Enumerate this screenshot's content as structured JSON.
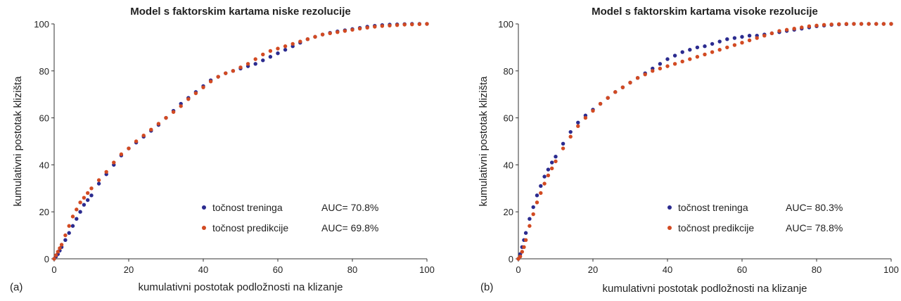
{
  "figure": {
    "panel_labels": [
      "(a)",
      "(b)"
    ]
  },
  "colors": {
    "training": "#2b2b8f",
    "prediction": "#d24a22",
    "axis": "#333333",
    "text": "#222222"
  },
  "chart_data": [
    {
      "type": "scatter",
      "title": "Model s faktorskim kartama niske rezolucije",
      "xlabel": "kumulativni postotak podložnosti na klizanje",
      "ylabel": "kumulativni postotak klizišta",
      "xlim": [
        0,
        100
      ],
      "ylim": [
        0,
        100
      ],
      "xticks": [
        0,
        20,
        40,
        60,
        80,
        100
      ],
      "yticks": [
        0,
        20,
        40,
        60,
        80,
        100
      ],
      "grid": false,
      "legend_position": "bottom-right",
      "series": [
        {
          "name": "točnost treninga",
          "auc_label": "AUC= 70.8%",
          "color": "#2b2b8f",
          "x": [
            0,
            0.5,
            1,
            1.5,
            2,
            3,
            4,
            5,
            6,
            7,
            8,
            9,
            10,
            12,
            14,
            16,
            18,
            20,
            22,
            24,
            26,
            28,
            30,
            32,
            34,
            36,
            38,
            40,
            42,
            44,
            46,
            48,
            50,
            52,
            54,
            56,
            58,
            60,
            62,
            64,
            66,
            68,
            70,
            72,
            74,
            76,
            78,
            80,
            82,
            84,
            86,
            88,
            90,
            92,
            94,
            96,
            98,
            100
          ],
          "y": [
            0,
            1,
            2,
            3.5,
            5,
            8,
            11,
            14,
            17,
            20,
            23,
            25,
            27,
            32,
            36,
            40,
            44,
            47,
            49.5,
            52,
            54.5,
            57,
            60,
            63,
            66,
            68.5,
            71,
            73.5,
            76,
            77.5,
            79,
            80,
            81,
            82,
            83,
            84.5,
            86,
            87.5,
            89,
            90.5,
            92,
            93.5,
            94.5,
            95.5,
            96.2,
            96.8,
            97.3,
            97.8,
            98.3,
            98.8,
            99.2,
            99.5,
            99.7,
            99.8,
            99.9,
            100,
            100,
            100
          ]
        },
        {
          "name": "točnost predikcije",
          "auc_label": "AUC= 69.8%",
          "color": "#d24a22",
          "x": [
            0,
            0.5,
            1,
            1.5,
            2,
            3,
            4,
            5,
            6,
            7,
            8,
            9,
            10,
            12,
            14,
            16,
            18,
            20,
            22,
            24,
            26,
            28,
            30,
            32,
            34,
            36,
            38,
            40,
            42,
            44,
            46,
            48,
            50,
            52,
            54,
            56,
            58,
            60,
            62,
            64,
            66,
            68,
            70,
            72,
            74,
            76,
            78,
            80,
            82,
            84,
            86,
            88,
            90,
            92,
            94,
            96,
            98,
            100
          ],
          "y": [
            0,
            1.5,
            3,
            4.5,
            6,
            10,
            14,
            18,
            21,
            24,
            26,
            28,
            30,
            33.5,
            37,
            41,
            44.5,
            47,
            50,
            52.5,
            55,
            57.5,
            60,
            62.5,
            65,
            68,
            70.5,
            73,
            75.5,
            77.5,
            79,
            80,
            81.5,
            83,
            85,
            87,
            88.5,
            89.5,
            90.5,
            91.5,
            92.5,
            93.5,
            94.5,
            95.5,
            96,
            96.5,
            97,
            97.5,
            98,
            98.4,
            98.8,
            99.1,
            99.3,
            99.5,
            99.7,
            99.8,
            99.9,
            100
          ]
        }
      ]
    },
    {
      "type": "scatter",
      "title": "Model s faktorskim kartama visoke rezolucije",
      "xlabel": "kumulativni postotak podložnosti na klizanje",
      "ylabel": "kumulativni postotak klizišta",
      "xlim": [
        0,
        100
      ],
      "ylim": [
        0,
        100
      ],
      "xticks": [
        0,
        20,
        40,
        60,
        80,
        100
      ],
      "yticks": [
        0,
        20,
        40,
        60,
        80,
        100
      ],
      "grid": false,
      "legend_position": "bottom-right",
      "series": [
        {
          "name": "točnost treninga",
          "auc_label": "AUC= 80.3%",
          "color": "#2b2b8f",
          "x": [
            0,
            0.5,
            1,
            1.5,
            2,
            3,
            4,
            5,
            6,
            7,
            8,
            9,
            10,
            12,
            14,
            16,
            18,
            20,
            22,
            24,
            26,
            28,
            30,
            32,
            34,
            36,
            38,
            40,
            42,
            44,
            46,
            48,
            50,
            52,
            54,
            56,
            58,
            60,
            62,
            64,
            66,
            68,
            70,
            72,
            74,
            76,
            78,
            80,
            82,
            84,
            86,
            88,
            90,
            92,
            94,
            96,
            98,
            100
          ],
          "y": [
            0,
            2,
            5,
            8,
            11,
            17,
            22,
            27,
            31,
            35,
            38,
            41,
            43.5,
            49,
            54,
            58,
            61,
            63.5,
            66,
            68.5,
            71,
            73,
            75,
            77,
            79,
            81,
            83,
            85,
            86.5,
            88,
            89,
            90,
            90.5,
            91.5,
            92.5,
            93.5,
            94,
            94.5,
            95,
            95,
            95.5,
            96,
            96.5,
            97,
            97.5,
            98,
            98.5,
            99,
            99.3,
            99.6,
            99.8,
            99.9,
            100,
            100,
            100,
            100,
            100,
            100
          ]
        },
        {
          "name": "točnost predikcije",
          "auc_label": "AUC= 78.8%",
          "color": "#d24a22",
          "x": [
            0,
            0.5,
            1,
            1.5,
            2,
            3,
            4,
            5,
            6,
            7,
            8,
            9,
            10,
            12,
            14,
            16,
            18,
            20,
            22,
            24,
            26,
            28,
            30,
            32,
            34,
            36,
            38,
            40,
            42,
            44,
            46,
            48,
            50,
            52,
            54,
            56,
            58,
            60,
            62,
            64,
            66,
            68,
            70,
            72,
            74,
            76,
            78,
            80,
            82,
            84,
            86,
            88,
            90,
            92,
            94,
            96,
            98,
            100
          ],
          "y": [
            0,
            1,
            3,
            5,
            8,
            14,
            19,
            24,
            28,
            32,
            35.5,
            38.5,
            41.5,
            47,
            52,
            56.5,
            60,
            63,
            66,
            68.5,
            71,
            73,
            75,
            77,
            78.5,
            80,
            81,
            82,
            83,
            84,
            85,
            86,
            87,
            88,
            89,
            90,
            91,
            92,
            93,
            94,
            95,
            96,
            97,
            97.5,
            98,
            98.5,
            99,
            99.3,
            99.6,
            99.8,
            99.9,
            100,
            100,
            100,
            100,
            100,
            100,
            100
          ]
        }
      ]
    }
  ]
}
